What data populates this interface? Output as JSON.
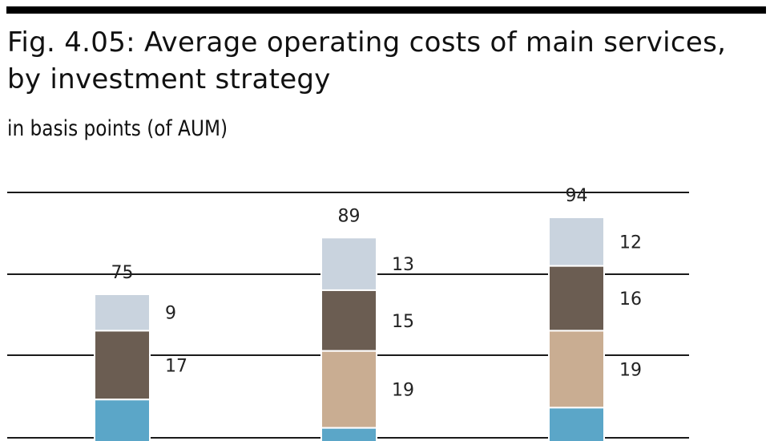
{
  "title": "Fig. 4.05: Average operating costs of main services, by investment strategy",
  "subtitle": "in basis points (of AUM)",
  "colors": {
    "bar_border": "#ffffff",
    "grid": "#1a1a1a",
    "top_bar": "#000000"
  },
  "chart_data": {
    "type": "bar",
    "stacked": true,
    "unit": "basis points (of AUM)",
    "grid": true,
    "categories": [
      "",
      "",
      ""
    ],
    "totals": [
      75,
      89,
      94
    ],
    "series": [
      {
        "color": "#5ba6c8",
        "values": [
          null,
          null,
          null
        ]
      },
      {
        "color": "#c9ad92",
        "values": [
          null,
          19,
          19
        ]
      },
      {
        "color": "#6b5d52",
        "values": [
          17,
          15,
          16
        ]
      },
      {
        "color": "#c9d3de",
        "values": [
          9,
          13,
          12
        ]
      }
    ],
    "segment_labels": [
      [
        "",
        "",
        "17",
        "9"
      ],
      [
        "",
        "19",
        "15",
        "13"
      ],
      [
        "",
        "19",
        "16",
        "12"
      ]
    ],
    "total_labels": [
      "75",
      "89",
      "94"
    ]
  }
}
